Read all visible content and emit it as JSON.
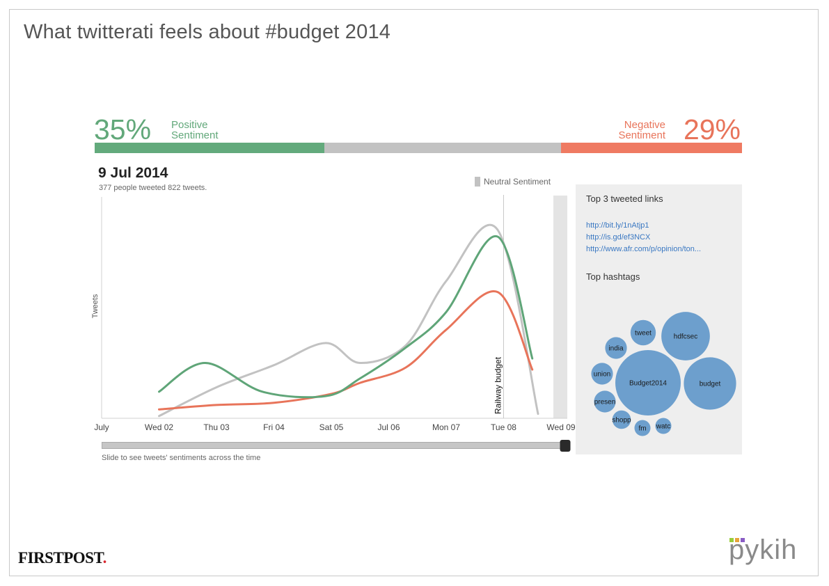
{
  "title": "What twitterati feels about #budget 2014",
  "sentiment": {
    "positive": {
      "percent": "35%",
      "label_line1": "Positive",
      "label_line2": "Sentiment",
      "color": "#62a87a"
    },
    "negative": {
      "percent": "29%",
      "label_line1": "Negative",
      "label_line2": "Sentiment",
      "color": "#e8745a"
    },
    "neutral": {
      "label": "Neutral Sentiment",
      "color": "#c2c2c2"
    }
  },
  "date_panel": {
    "date": "9 Jul 2014",
    "summary": "377 people tweeted 822 tweets."
  },
  "chart_data": {
    "type": "line",
    "ylabel": "Tweets",
    "xlabel": "",
    "x": [
      "July",
      "Wed 02",
      "Thu 03",
      "Fri 04",
      "Sat 05",
      "Jul 06",
      "Mon 07",
      "Tue 08",
      "Wed 09"
    ],
    "ylim": [
      0,
      100
    ],
    "series": [
      {
        "name": "Positive",
        "color": "#5fa578",
        "x": [
          1,
          1.8,
          2.8,
          3.9,
          4.5,
          5.3,
          6.0,
          6.9,
          7.5
        ],
        "values": [
          12,
          25,
          12,
          10,
          18,
          32,
          48,
          82,
          27
        ]
      },
      {
        "name": "Negative",
        "color": "#e8745a",
        "x": [
          1,
          2,
          3,
          4,
          4.5,
          5.3,
          6.0,
          6.9,
          7.5
        ],
        "values": [
          4,
          6,
          7,
          11,
          16,
          23,
          40,
          57,
          22
        ]
      },
      {
        "name": "Neutral",
        "color": "#c2c2c2",
        "x": [
          1,
          2,
          3,
          3.9,
          4.5,
          5.3,
          6.0,
          6.9,
          7.6
        ],
        "values": [
          1,
          14,
          24,
          34,
          25,
          33,
          62,
          85,
          2
        ]
      }
    ],
    "annotations": [
      {
        "label": "Railway budget",
        "x": 7
      }
    ],
    "slider": {
      "caption": "Slide to see tweets' sentiments across the time",
      "position": 1.0
    }
  },
  "side_panel": {
    "links_title": "Top 3 tweeted links",
    "links": [
      "http://bit.ly/1nAtjp1",
      "http://is.gd/ef3NCX",
      "http://www.afr.com/p/opinion/ton..."
    ],
    "hashtags_title": "Top hashtags",
    "hashtags": [
      {
        "label": "Budget2014",
        "weight": 100
      },
      {
        "label": "budget",
        "weight": 64
      },
      {
        "label": "hdfcsec",
        "weight": 55
      },
      {
        "label": "tweet",
        "weight": 15
      },
      {
        "label": "india",
        "weight": 11
      },
      {
        "label": "union",
        "weight": 11
      },
      {
        "label": "presen",
        "weight": 11
      },
      {
        "label": "shopp",
        "weight": 8
      },
      {
        "label": "fm",
        "weight": 6
      },
      {
        "label": "watc",
        "weight": 6
      }
    ],
    "bubble_color": "#6d9fcd"
  },
  "footer": {
    "brand_left": "FIRSTPOST",
    "brand_left_dot": ".",
    "brand_right": "pykih",
    "brand_right_dot_colors": [
      "#9acc3a",
      "#e8a33a",
      "#8a5cc4"
    ]
  }
}
